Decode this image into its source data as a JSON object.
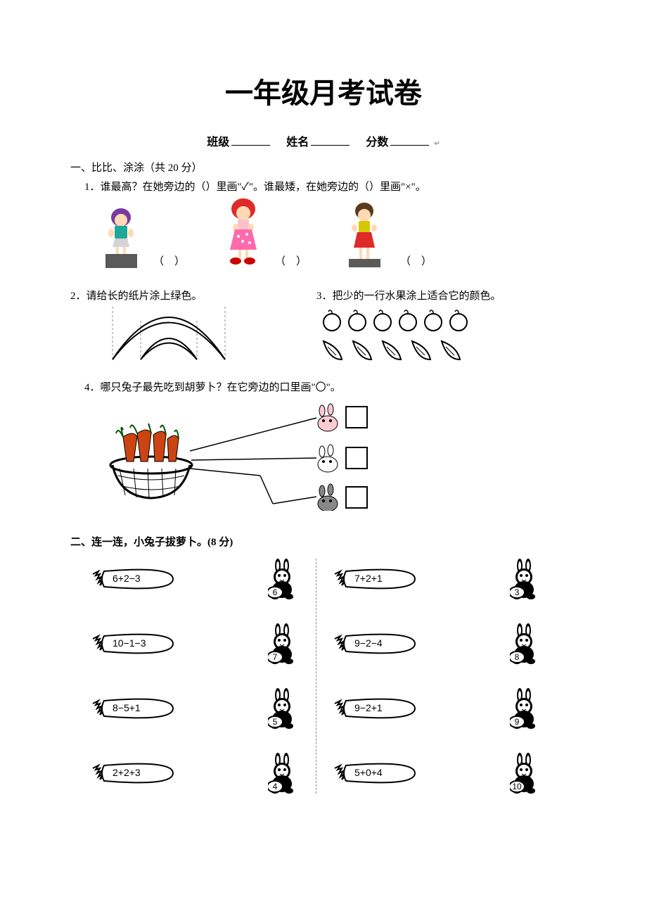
{
  "title": "一年级月考试卷",
  "header": {
    "class_label": "班级",
    "name_label": "姓名",
    "score_label": "分数"
  },
  "section1": {
    "head": "一、比比、涂涂（共 20 分）",
    "q1": "1．谁最高？在她旁边的（）里画\"✓\"。谁最矮，在她旁边的（）里画\"×\"。",
    "paren": "（　）",
    "q2": "2．请给长的纸片涂上绿色。",
    "q3": "3．把少的一行水果涂上适合它的颜色。",
    "q4": "4．哪只兔子最先吃到胡萝卜？在它旁边的口里画\"〇\"。"
  },
  "section2": {
    "head": "二、连一连，小兔子拔萝卜。(8 分)",
    "left_exprs": [
      "6+2−3",
      "10−1−3",
      "8−5+1",
      "2+2+3"
    ],
    "left_vals": [
      "6",
      "7",
      "5",
      "4"
    ],
    "right_exprs": [
      "7+2+1",
      "9−2−4",
      "9−2+1",
      "5+0+4"
    ],
    "right_vals": [
      "3",
      "8",
      "9",
      "10"
    ]
  },
  "colors": {
    "girl1_hair": "#7b3b9e",
    "girl1_top": "#1fa89a",
    "girl1_skirt": "#d4d4d4",
    "girl2_hair": "#e02a2a",
    "girl2_top": "#ffc0cb",
    "girl2_skirt": "#ff6aad",
    "girl3_hair": "#5a3a1a",
    "girl3_top": "#d6c800",
    "girl3_skirt": "#e02a2a",
    "box": "#5a5a5a",
    "apple": "#000",
    "banana": "#000",
    "carrot_red": "#a00",
    "carrot_green": "#0a0",
    "basket": "#000"
  }
}
